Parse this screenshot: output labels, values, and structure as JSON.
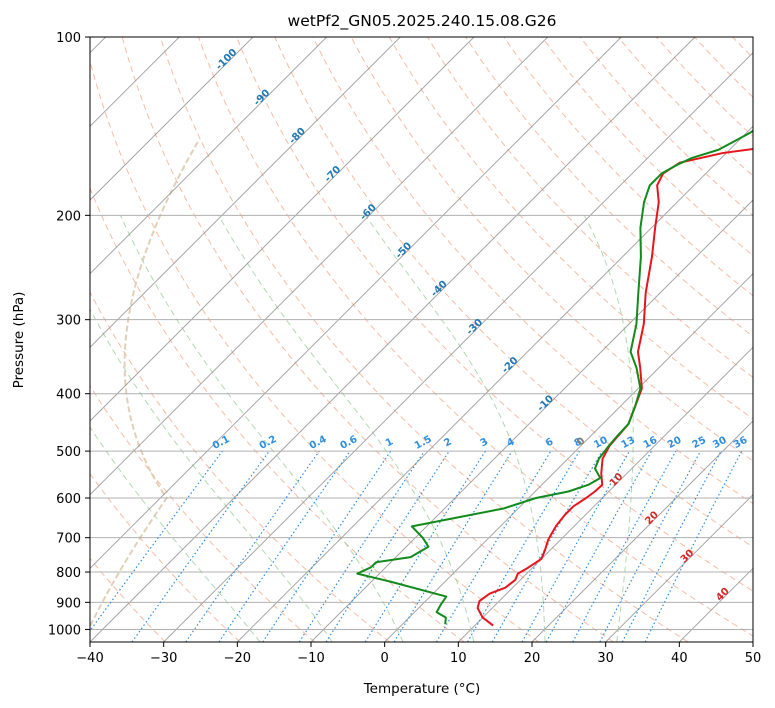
{
  "chart_data": {
    "type": "line",
    "subtype": "skew-t log-p sounding",
    "title": "wetPf2_GN05.2025.240.15.08.G26",
    "xlabel": "Temperature (°C)",
    "ylabel": "Pressure (hPa)",
    "xlim": [
      -40,
      50
    ],
    "ylim": [
      1050,
      100
    ],
    "x_ticks": [
      -40,
      -30,
      -20,
      -10,
      0,
      10,
      20,
      30,
      40,
      50
    ],
    "y_ticks": [
      100,
      200,
      300,
      400,
      500,
      600,
      700,
      800,
      900,
      1000
    ],
    "grid": true,
    "colors": {
      "temperature": "#e8141c",
      "dewpoint": "#128a1c",
      "isotherm": "#909090",
      "dry_adiabat": "#f4a585",
      "moist_adiabat": "#9ecf9e",
      "mixing_ratio": "#2f8fe0",
      "isotherm_label": "#1f77b4",
      "warm_label": "#d62728",
      "zero_label": "#7f7f7f",
      "lcl_curve": "#d9c4a8"
    },
    "series": [
      {
        "name": "Temperature",
        "color": "#e8141c",
        "points": [
          [
            12.5,
            985
          ],
          [
            10.0,
            955
          ],
          [
            8.0,
            920
          ],
          [
            7.3,
            895
          ],
          [
            7.7,
            870
          ],
          [
            9.0,
            850
          ],
          [
            9.3,
            825
          ],
          [
            8.8,
            805
          ],
          [
            9.3,
            790
          ],
          [
            10.0,
            760
          ],
          [
            9.3,
            735
          ],
          [
            8.3,
            705
          ],
          [
            7.5,
            668
          ],
          [
            7.2,
            640
          ],
          [
            7.2,
            620
          ],
          [
            7.8,
            600
          ],
          [
            8.1,
            585
          ],
          [
            8.2,
            570
          ],
          [
            6.5,
            545
          ],
          [
            4.7,
            515
          ],
          [
            3.9,
            490
          ],
          [
            3.7,
            470
          ],
          [
            3.5,
            450
          ],
          [
            2.0,
            420
          ],
          [
            0.5,
            392
          ],
          [
            -2.5,
            362
          ],
          [
            -5.0,
            340
          ],
          [
            -8.0,
            305
          ],
          [
            -12.0,
            270
          ],
          [
            -16.0,
            235
          ],
          [
            -19.5,
            210
          ],
          [
            -22.5,
            190
          ],
          [
            -25.0,
            178
          ],
          [
            -25.8,
            170
          ],
          [
            -25.0,
            163
          ],
          [
            -20.5,
            157
          ],
          [
            -10.0,
            150
          ],
          [
            -3.0,
            145
          ],
          [
            -1.0,
            137
          ],
          [
            -2.0,
            125
          ],
          [
            -3.0,
            117
          ],
          [
            -2.5,
            112
          ],
          [
            -1.0,
            105
          ],
          [
            0.5,
            100
          ]
        ]
      },
      {
        "name": "Dewpoint",
        "color": "#128a1c",
        "points": [
          [
            5.8,
            980
          ],
          [
            5.0,
            955
          ],
          [
            3.0,
            935
          ],
          [
            2.5,
            905
          ],
          [
            2.2,
            880
          ],
          [
            -7.5,
            830
          ],
          [
            -13.0,
            805
          ],
          [
            -12.0,
            785
          ],
          [
            -12.0,
            770
          ],
          [
            -8.0,
            755
          ],
          [
            -7.0,
            725
          ],
          [
            -9.0,
            700
          ],
          [
            -12.0,
            670
          ],
          [
            -2.0,
            625
          ],
          [
            1.0,
            600
          ],
          [
            4.5,
            585
          ],
          [
            6.3,
            570
          ],
          [
            7.0,
            555
          ],
          [
            5.0,
            535
          ],
          [
            4.2,
            515
          ],
          [
            3.8,
            490
          ],
          [
            3.6,
            470
          ],
          [
            3.5,
            450
          ],
          [
            2.0,
            420
          ],
          [
            0.3,
            392
          ],
          [
            -3.0,
            362
          ],
          [
            -6.0,
            340
          ],
          [
            -9.0,
            305
          ],
          [
            -13.0,
            270
          ],
          [
            -17.5,
            235
          ],
          [
            -21.5,
            210
          ],
          [
            -24.5,
            190
          ],
          [
            -26.0,
            178
          ],
          [
            -26.0,
            170
          ],
          [
            -25.0,
            164
          ],
          [
            -24.0,
            160
          ],
          [
            -21.5,
            155
          ],
          [
            -19.5,
            145
          ],
          [
            -18.5,
            135
          ],
          [
            -16.5,
            120
          ],
          [
            -12.0,
            108
          ],
          [
            -8.0,
            100
          ]
        ]
      }
    ],
    "isotherm_labels": [
      "-100",
      "-90",
      "-80",
      "-70",
      "-60",
      "-50",
      "-40",
      "-30",
      "-20",
      "-10",
      "0",
      "10",
      "20",
      "30",
      "40"
    ],
    "isotherm_label_values": [
      -100,
      -90,
      -80,
      -70,
      -60,
      -50,
      -40,
      -30,
      -20,
      -10,
      0,
      10,
      20,
      30,
      40
    ],
    "mixing_ratio_labels": [
      "0.1",
      "0.2",
      "0.4",
      "0.6",
      "1",
      "1.5",
      "2",
      "3",
      "4",
      "6",
      "8",
      "10",
      "13",
      "16",
      "20",
      "25",
      "30",
      "36"
    ],
    "mixing_ratio_values": [
      0.1,
      0.2,
      0.4,
      0.6,
      1,
      1.5,
      2,
      3,
      4,
      6,
      8,
      10,
      13,
      16,
      20,
      25,
      30,
      36
    ],
    "mixing_ratio_label_pressure": 500,
    "mixing_ratio_label_temps": [
      -22.5,
      -15.5,
      -9.2,
      -4.8,
      0.6,
      5.1,
      8.5,
      13.3,
      17.1,
      22.2,
      26.1,
      29.1,
      32.9,
      36.1,
      39.4,
      42.6,
      45.1,
      47.8
    ],
    "dry_adiabat_thetas": [
      240,
      250,
      260,
      270,
      280,
      290,
      300,
      310,
      320,
      330,
      340,
      350,
      360,
      370,
      380,
      390,
      400,
      410,
      420,
      430,
      440,
      450,
      460,
      470,
      480,
      490,
      500
    ],
    "moist_adiabat_bases": [
      -20,
      -10,
      0,
      10,
      20,
      30
    ],
    "skew": 25.5,
    "top_pressure": 100,
    "bottom_pressure": 1050
  }
}
